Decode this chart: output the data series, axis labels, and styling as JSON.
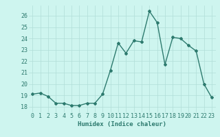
{
  "x": [
    0,
    1,
    2,
    3,
    4,
    5,
    6,
    7,
    8,
    9,
    10,
    11,
    12,
    13,
    14,
    15,
    16,
    17,
    18,
    19,
    20,
    21,
    22,
    23
  ],
  "y": [
    19.1,
    19.2,
    18.9,
    18.3,
    18.3,
    18.1,
    18.1,
    18.3,
    18.3,
    19.1,
    21.2,
    23.6,
    22.7,
    23.8,
    23.7,
    26.4,
    25.4,
    21.7,
    24.1,
    24.0,
    23.4,
    22.9,
    20.0,
    18.8
  ],
  "line_color": "#2d7a6e",
  "bg_color": "#cef5ef",
  "grid_color": "#b0ddd8",
  "xlabel": "Humidex (Indice chaleur)",
  "ylim": [
    17.5,
    26.9
  ],
  "yticks": [
    18,
    19,
    20,
    21,
    22,
    23,
    24,
    25,
    26
  ],
  "xlim": [
    -0.5,
    23.5
  ],
  "marker": "D",
  "markersize": 2.0,
  "linewidth": 1.0,
  "xlabel_fontsize": 6.5,
  "tick_fontsize": 6.0
}
